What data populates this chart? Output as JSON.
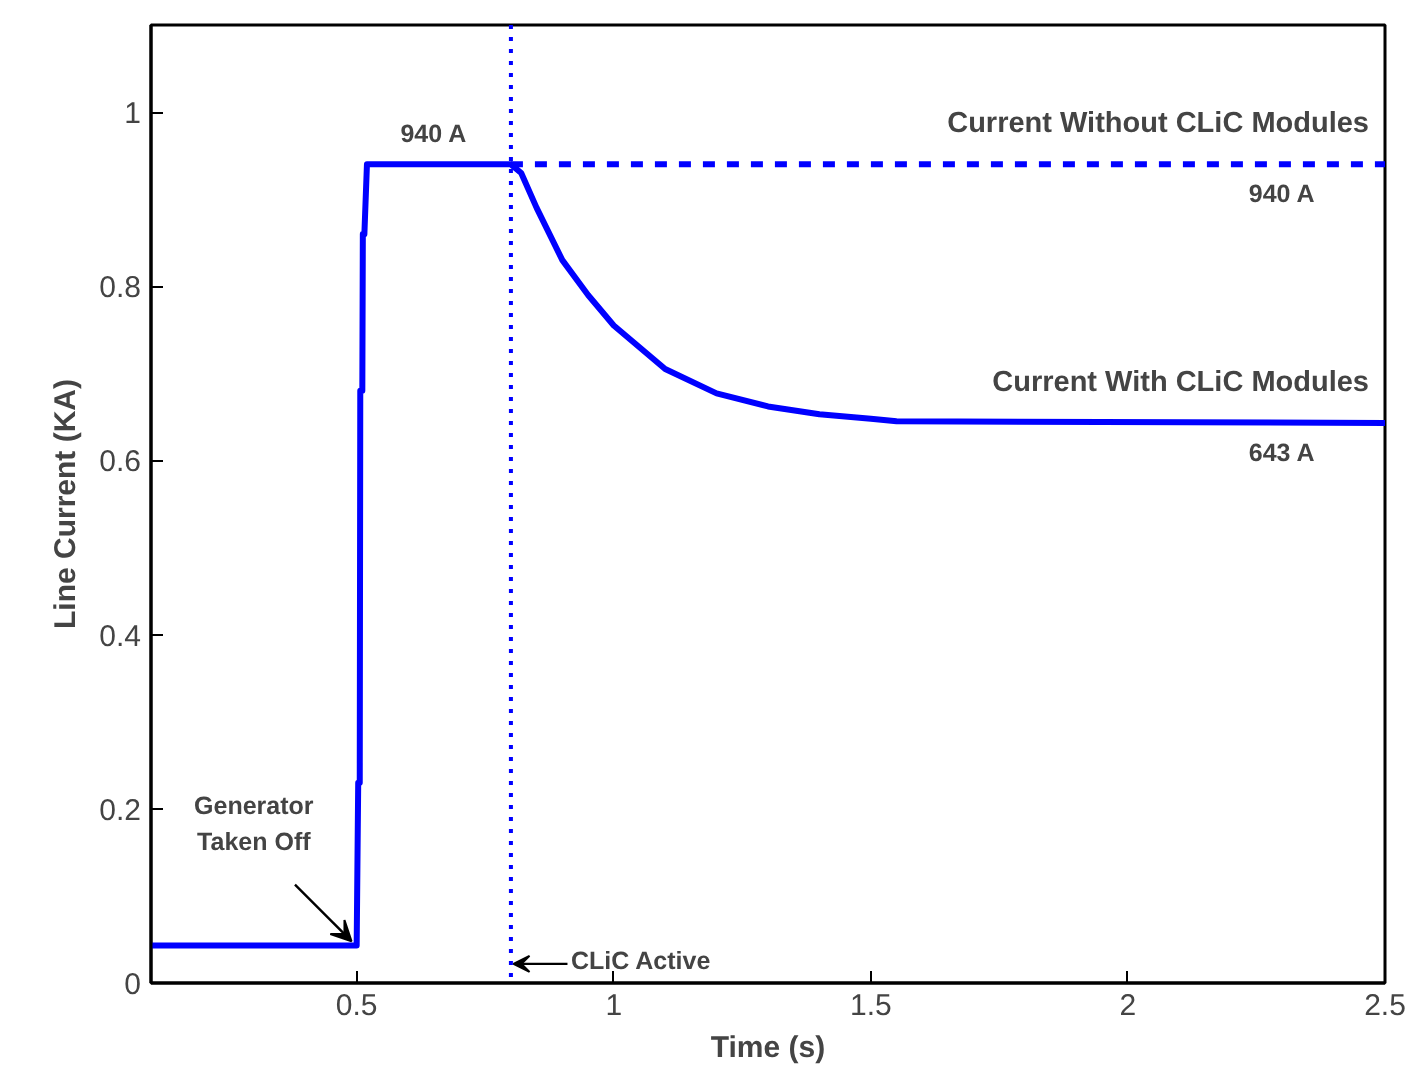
{
  "chart_data": {
    "type": "line",
    "xlabel": "Time (s)",
    "ylabel": "Line Current (KA)",
    "xlim": [
      0.1,
      2.5
    ],
    "ylim": [
      0,
      1.1
    ],
    "xticks": [
      0.5,
      1,
      1.5,
      2,
      2.5
    ],
    "yticks": [
      0,
      0.2,
      0.4,
      0.6,
      0.8,
      1
    ],
    "series": [
      {
        "name": "Current With CLiC Modules",
        "color": "#0000ff",
        "line_style": "solid",
        "x": [
          0.1,
          0.5,
          0.503,
          0.506,
          0.507,
          0.511,
          0.512,
          0.515,
          0.52,
          0.8,
          0.82,
          0.85,
          0.9,
          0.95,
          1.0,
          1.05,
          1.1,
          1.2,
          1.3,
          1.4,
          1.5,
          1.55,
          2.5
        ],
        "values": [
          0.043,
          0.043,
          0.23,
          0.23,
          0.68,
          0.68,
          0.86,
          0.86,
          0.94,
          0.94,
          0.93,
          0.89,
          0.83,
          0.79,
          0.755,
          0.73,
          0.705,
          0.677,
          0.662,
          0.653,
          0.648,
          0.645,
          0.643
        ]
      },
      {
        "name": "Current Without CLiC Modules",
        "color": "#0000ff",
        "line_style": "dashed",
        "x": [
          0.8,
          2.5
        ],
        "values": [
          0.94,
          0.94
        ]
      }
    ],
    "ref_lines": [
      {
        "axis": "x",
        "value": 0.8,
        "label": "CLiC Active",
        "color": "#0000ff",
        "line_style": "dotted"
      }
    ],
    "annotations": [
      {
        "text": "940 A",
        "x": 0.65,
        "y": 0.94
      },
      {
        "text": "940 A",
        "x": 2.3,
        "y": 0.94
      },
      {
        "text": "643 A",
        "x": 2.3,
        "y": 0.643
      },
      {
        "text": "Generator Taken Off",
        "x": 0.5,
        "y": 0.043
      }
    ],
    "grid": false
  }
}
